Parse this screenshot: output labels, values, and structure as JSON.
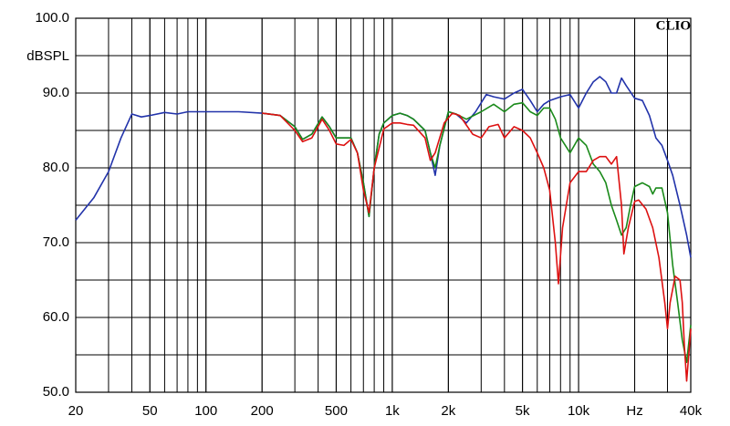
{
  "chart_data": {
    "type": "line",
    "annotation": "CLIO",
    "y_label": "dBSPL",
    "xscale": "log",
    "grid": true,
    "minor_grid": true,
    "xlim": [
      20,
      40000
    ],
    "ylim": [
      50,
      100
    ],
    "xticks": [
      20,
      50,
      100,
      200,
      500,
      {
        "value": 1000,
        "label": "1k"
      },
      {
        "value": 2000,
        "label": "2k"
      },
      {
        "value": 5000,
        "label": "5k"
      },
      {
        "value": 10000,
        "label": "10k"
      },
      {
        "value": 20000,
        "label": "Hz"
      },
      {
        "value": 40000,
        "label": "40k"
      }
    ],
    "yticks": [
      {
        "value": 50,
        "label": "50.0"
      },
      {
        "value": 60,
        "label": "60.0"
      },
      {
        "value": 70,
        "label": "70.0"
      },
      {
        "value": 80,
        "label": "80.0"
      },
      {
        "value": 90,
        "label": "90.0"
      },
      {
        "value": 100,
        "label": "100.0"
      }
    ],
    "series": [
      {
        "color": "#2233aa",
        "x": [
          20,
          25,
          30,
          35,
          40,
          45,
          50,
          60,
          70,
          80,
          100,
          150,
          200,
          250,
          300,
          330,
          370,
          420,
          460,
          500,
          550,
          600,
          650,
          700,
          750,
          800,
          850,
          900,
          1000,
          1100,
          1200,
          1300,
          1500,
          1600,
          1700,
          1800,
          2000,
          2200,
          2500,
          2800,
          3200,
          3500,
          4000,
          4500,
          5000,
          5500,
          6000,
          6500,
          7000,
          8000,
          9000,
          10000,
          11000,
          12000,
          13000,
          14000,
          15000,
          16000,
          17000,
          18000,
          20000,
          22000,
          24000,
          26000,
          28000,
          30000,
          32000,
          35000,
          38000,
          40000
        ],
        "values": [
          73,
          76,
          79.5,
          84,
          87.2,
          86.8,
          87,
          87.4,
          87.2,
          87.5,
          87.5,
          87.5,
          87.3,
          87,
          85.5,
          83.8,
          84.5,
          86.8,
          85.5,
          84,
          84,
          84,
          82,
          78,
          73.5,
          80,
          84.5,
          86,
          87,
          87.3,
          87,
          86.5,
          85,
          82,
          79,
          83,
          87.5,
          87.2,
          86,
          87.5,
          89.8,
          89.5,
          89.2,
          90,
          90.5,
          89,
          87.5,
          88.5,
          89,
          89.5,
          89.8,
          88,
          90,
          91.5,
          92.2,
          91.5,
          90,
          90,
          92,
          91,
          89.3,
          89,
          87,
          84,
          83,
          81,
          79,
          75,
          71,
          68
        ]
      },
      {
        "color": "#1a8a1a",
        "x": [
          200,
          250,
          300,
          330,
          370,
          420,
          460,
          500,
          550,
          600,
          650,
          700,
          750,
          800,
          850,
          900,
          1000,
          1100,
          1200,
          1300,
          1500,
          1600,
          1700,
          1800,
          2000,
          2200,
          2500,
          3000,
          3500,
          4000,
          4500,
          5000,
          5500,
          6000,
          6500,
          7000,
          7500,
          8000,
          9000,
          10000,
          11000,
          12000,
          13000,
          14000,
          15000,
          16000,
          17000,
          18000,
          19000,
          20000,
          22000,
          24000,
          25000,
          26000,
          28000,
          30000,
          32000,
          34000,
          36000,
          38000,
          40000
        ],
        "values": [
          87.3,
          87,
          85.5,
          83.8,
          84.5,
          86.8,
          85.5,
          84,
          84,
          84,
          82,
          78,
          73.5,
          80,
          84.5,
          86,
          87,
          87.3,
          87,
          86.5,
          85,
          82,
          80,
          83,
          87.5,
          87.2,
          86.5,
          87.5,
          88.5,
          87.5,
          88.5,
          88.7,
          87.5,
          87,
          88,
          88,
          86.5,
          84,
          82,
          84,
          83,
          80.5,
          79.5,
          78,
          75,
          73,
          71,
          72,
          75,
          77.5,
          78,
          77.5,
          76.5,
          77.3,
          77.3,
          74,
          67,
          62,
          57,
          54,
          59
        ]
      },
      {
        "color": "#dd1111",
        "x": [
          200,
          250,
          300,
          330,
          370,
          420,
          460,
          500,
          550,
          600,
          650,
          700,
          750,
          800,
          900,
          1000,
          1100,
          1200,
          1300,
          1500,
          1600,
          1700,
          1900,
          2100,
          2300,
          2700,
          3000,
          3300,
          3700,
          4000,
          4500,
          5000,
          5500,
          6000,
          6500,
          7000,
          7500,
          7800,
          8200,
          9000,
          10000,
          11000,
          12000,
          13000,
          14000,
          15000,
          16000,
          17000,
          17500,
          18500,
          20000,
          21000,
          23000,
          25000,
          27000,
          29000,
          30000,
          31000,
          33000,
          35000,
          36000,
          37000,
          38000,
          39000,
          40000
        ],
        "values": [
          87.3,
          87,
          85,
          83.5,
          84,
          86.5,
          85,
          83.2,
          83,
          83.8,
          82,
          77,
          74,
          80,
          85.2,
          86,
          86,
          85.8,
          85.7,
          84,
          81,
          82,
          86,
          87.3,
          87,
          84.5,
          84,
          85.5,
          85.8,
          84,
          85.5,
          85,
          84,
          82,
          80,
          77,
          70,
          64.5,
          72,
          78,
          79.5,
          79.5,
          81,
          81.5,
          81.5,
          80.5,
          81.5,
          75,
          68.5,
          72,
          75.5,
          75.7,
          74.5,
          72,
          68,
          62,
          58.5,
          62,
          65.5,
          65,
          62,
          56,
          51.5,
          55,
          58.5
        ]
      }
    ]
  }
}
